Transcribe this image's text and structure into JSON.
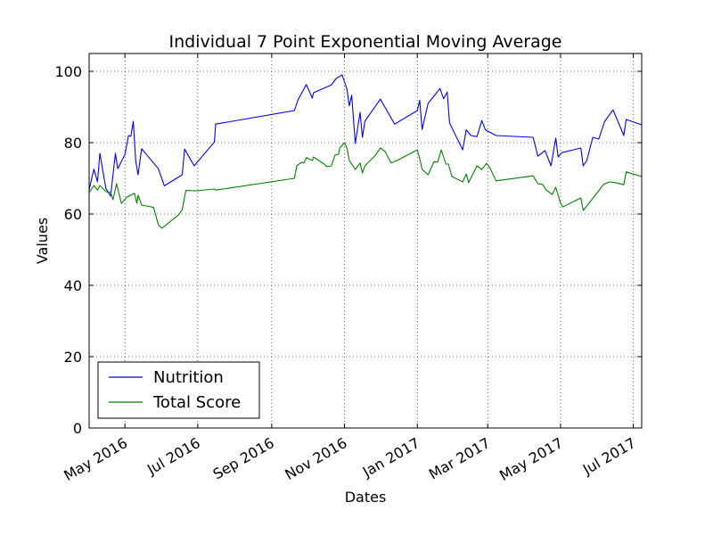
{
  "chart_data": {
    "type": "line",
    "title": "Individual 7 Point Exponential Moving Average",
    "xlabel": "Dates",
    "ylabel": "Values",
    "xlim": [
      "2016-04-01",
      "2017-07-08"
    ],
    "ylim": [
      0,
      105
    ],
    "grid": true,
    "legend_position": "bottom-left",
    "x_ticks": [
      {
        "label": "May 2016",
        "date": "2016-05-01"
      },
      {
        "label": "Jul 2016",
        "date": "2016-07-01"
      },
      {
        "label": "Sep 2016",
        "date": "2016-09-01"
      },
      {
        "label": "Nov 2016",
        "date": "2016-11-01"
      },
      {
        "label": "Jan 2017",
        "date": "2017-01-01"
      },
      {
        "label": "Mar 2017",
        "date": "2017-03-01"
      },
      {
        "label": "May 2017",
        "date": "2017-05-01"
      },
      {
        "label": "Jul 2017",
        "date": "2017-07-01"
      }
    ],
    "y_ticks": [
      0,
      20,
      40,
      60,
      80,
      100
    ],
    "series": [
      {
        "name": "Nutrition",
        "color": "#0000ff",
        "points": [
          [
            "2016-04-01",
            66.8
          ],
          [
            "2016-04-05",
            72.6
          ],
          [
            "2016-04-08",
            69.0
          ],
          [
            "2016-04-10",
            77.0
          ],
          [
            "2016-04-15",
            67.2
          ],
          [
            "2016-04-19",
            65.0
          ],
          [
            "2016-04-23",
            77.0
          ],
          [
            "2016-04-25",
            72.7
          ],
          [
            "2016-05-01",
            76.7
          ],
          [
            "2016-05-04",
            82.0
          ],
          [
            "2016-05-06",
            81.8
          ],
          [
            "2016-05-08",
            86.0
          ],
          [
            "2016-05-10",
            75.0
          ],
          [
            "2016-05-12",
            71.0
          ],
          [
            "2016-05-15",
            78.3
          ],
          [
            "2016-05-29",
            72.7
          ],
          [
            "2016-06-03",
            67.9
          ],
          [
            "2016-06-18",
            71.0
          ],
          [
            "2016-06-20",
            78.2
          ],
          [
            "2016-06-28",
            73.5
          ],
          [
            "2016-07-15",
            80.2
          ],
          [
            "2016-07-16",
            85.2
          ],
          [
            "2016-09-20",
            89.0
          ],
          [
            "2016-09-23",
            92.0
          ],
          [
            "2016-09-30",
            96.3
          ],
          [
            "2016-10-05",
            92.5
          ],
          [
            "2016-10-06",
            94.0
          ],
          [
            "2016-10-21",
            96.2
          ],
          [
            "2016-10-25",
            98.0
          ],
          [
            "2016-10-30",
            99.0
          ],
          [
            "2016-11-03",
            95.0
          ],
          [
            "2016-11-05",
            90.3
          ],
          [
            "2016-11-07",
            93.3
          ],
          [
            "2016-11-10",
            79.8
          ],
          [
            "2016-11-14",
            88.5
          ],
          [
            "2016-11-16",
            81.5
          ],
          [
            "2016-11-18",
            86.0
          ],
          [
            "2016-12-01",
            92.2
          ],
          [
            "2016-12-13",
            85.2
          ],
          [
            "2017-01-01",
            89.0
          ],
          [
            "2017-01-03",
            91.9
          ],
          [
            "2017-01-05",
            83.7
          ],
          [
            "2017-01-10",
            91.0
          ],
          [
            "2017-01-20",
            95.2
          ],
          [
            "2017-01-23",
            92.3
          ],
          [
            "2017-01-26",
            94.2
          ],
          [
            "2017-01-28",
            85.5
          ],
          [
            "2017-02-08",
            78.0
          ],
          [
            "2017-02-11",
            83.6
          ],
          [
            "2017-02-15",
            82.0
          ],
          [
            "2017-02-20",
            81.7
          ],
          [
            "2017-02-24",
            86.2
          ],
          [
            "2017-02-27",
            83.6
          ],
          [
            "2017-03-08",
            82.0
          ],
          [
            "2017-04-08",
            81.5
          ],
          [
            "2017-04-12",
            76.2
          ],
          [
            "2017-04-18",
            77.8
          ],
          [
            "2017-04-23",
            73.5
          ],
          [
            "2017-04-27",
            81.3
          ],
          [
            "2017-04-29",
            76.0
          ],
          [
            "2017-05-02",
            77.2
          ],
          [
            "2017-05-18",
            78.5
          ],
          [
            "2017-05-20",
            73.5
          ],
          [
            "2017-05-23",
            75.0
          ],
          [
            "2017-05-28",
            81.5
          ],
          [
            "2017-06-02",
            81.0
          ],
          [
            "2017-06-07",
            86.0
          ],
          [
            "2017-06-14",
            89.2
          ],
          [
            "2017-06-23",
            82.0
          ],
          [
            "2017-06-25",
            86.5
          ],
          [
            "2017-07-08",
            85.0
          ]
        ]
      },
      {
        "name": "Total Score",
        "color": "#008000",
        "points": [
          [
            "2016-04-01",
            66.0
          ],
          [
            "2016-04-05",
            68.0
          ],
          [
            "2016-04-08",
            66.7
          ],
          [
            "2016-04-10",
            68.0
          ],
          [
            "2016-04-15",
            66.3
          ],
          [
            "2016-04-19",
            66.0
          ],
          [
            "2016-04-21",
            64.0
          ],
          [
            "2016-04-24",
            68.5
          ],
          [
            "2016-04-28",
            63.0
          ],
          [
            "2016-05-03",
            64.8
          ],
          [
            "2016-05-09",
            65.8
          ],
          [
            "2016-05-11",
            63.0
          ],
          [
            "2016-05-12",
            65.3
          ],
          [
            "2016-05-15",
            62.5
          ],
          [
            "2016-05-23",
            62.0
          ],
          [
            "2016-05-25",
            61.8
          ],
          [
            "2016-05-29",
            57.0
          ],
          [
            "2016-06-01",
            56.0
          ],
          [
            "2016-06-15",
            59.8
          ],
          [
            "2016-06-18",
            61.2
          ],
          [
            "2016-06-21",
            66.6
          ],
          [
            "2016-06-30",
            66.5
          ],
          [
            "2016-07-15",
            67.0
          ],
          [
            "2016-07-16",
            66.7
          ],
          [
            "2016-09-20",
            70.0
          ],
          [
            "2016-09-22",
            73.5
          ],
          [
            "2016-09-26",
            74.5
          ],
          [
            "2016-09-28",
            74.3
          ],
          [
            "2016-09-30",
            75.8
          ],
          [
            "2016-10-05",
            75.0
          ],
          [
            "2016-10-06",
            76.0
          ],
          [
            "2016-10-15",
            74.0
          ],
          [
            "2016-10-17",
            73.3
          ],
          [
            "2016-10-21",
            73.5
          ],
          [
            "2016-10-24",
            76.5
          ],
          [
            "2016-10-27",
            76.8
          ],
          [
            "2016-10-28",
            78.5
          ],
          [
            "2016-11-01",
            80.0
          ],
          [
            "2016-11-03",
            78.5
          ],
          [
            "2016-11-05",
            75.0
          ],
          [
            "2016-11-10",
            72.5
          ],
          [
            "2016-11-14",
            74.3
          ],
          [
            "2016-11-16",
            71.5
          ],
          [
            "2016-11-18",
            73.5
          ],
          [
            "2016-11-27",
            76.5
          ],
          [
            "2016-12-01",
            78.5
          ],
          [
            "2016-12-05",
            77.5
          ],
          [
            "2016-12-10",
            74.3
          ],
          [
            "2016-12-15",
            75.0
          ],
          [
            "2017-01-01",
            78.0
          ],
          [
            "2017-01-03",
            75.5
          ],
          [
            "2017-01-05",
            72.5
          ],
          [
            "2017-01-10",
            71.0
          ],
          [
            "2017-01-15",
            74.7
          ],
          [
            "2017-01-18",
            74.5
          ],
          [
            "2017-01-21",
            78.0
          ],
          [
            "2017-01-25",
            74.0
          ],
          [
            "2017-01-27",
            74.0
          ],
          [
            "2017-01-30",
            70.5
          ],
          [
            "2017-02-04",
            69.7
          ],
          [
            "2017-02-08",
            69.0
          ],
          [
            "2017-02-11",
            71.2
          ],
          [
            "2017-02-13",
            68.8
          ],
          [
            "2017-02-20",
            73.5
          ],
          [
            "2017-02-24",
            72.5
          ],
          [
            "2017-02-28",
            74.2
          ],
          [
            "2017-03-03",
            72.8
          ],
          [
            "2017-03-08",
            69.3
          ],
          [
            "2017-04-08",
            70.7
          ],
          [
            "2017-04-12",
            68.5
          ],
          [
            "2017-04-16",
            68.3
          ],
          [
            "2017-04-19",
            66.7
          ],
          [
            "2017-04-24",
            65.5
          ],
          [
            "2017-04-27",
            67.5
          ],
          [
            "2017-05-01",
            63.0
          ],
          [
            "2017-05-03",
            62.0
          ],
          [
            "2017-05-18",
            64.5
          ],
          [
            "2017-05-20",
            61.0
          ],
          [
            "2017-06-02",
            66.5
          ],
          [
            "2017-06-06",
            68.3
          ],
          [
            "2017-06-11",
            69.0
          ],
          [
            "2017-06-16",
            68.8
          ],
          [
            "2017-06-23",
            68.2
          ],
          [
            "2017-06-25",
            71.8
          ],
          [
            "2017-07-08",
            70.5
          ]
        ]
      }
    ]
  }
}
